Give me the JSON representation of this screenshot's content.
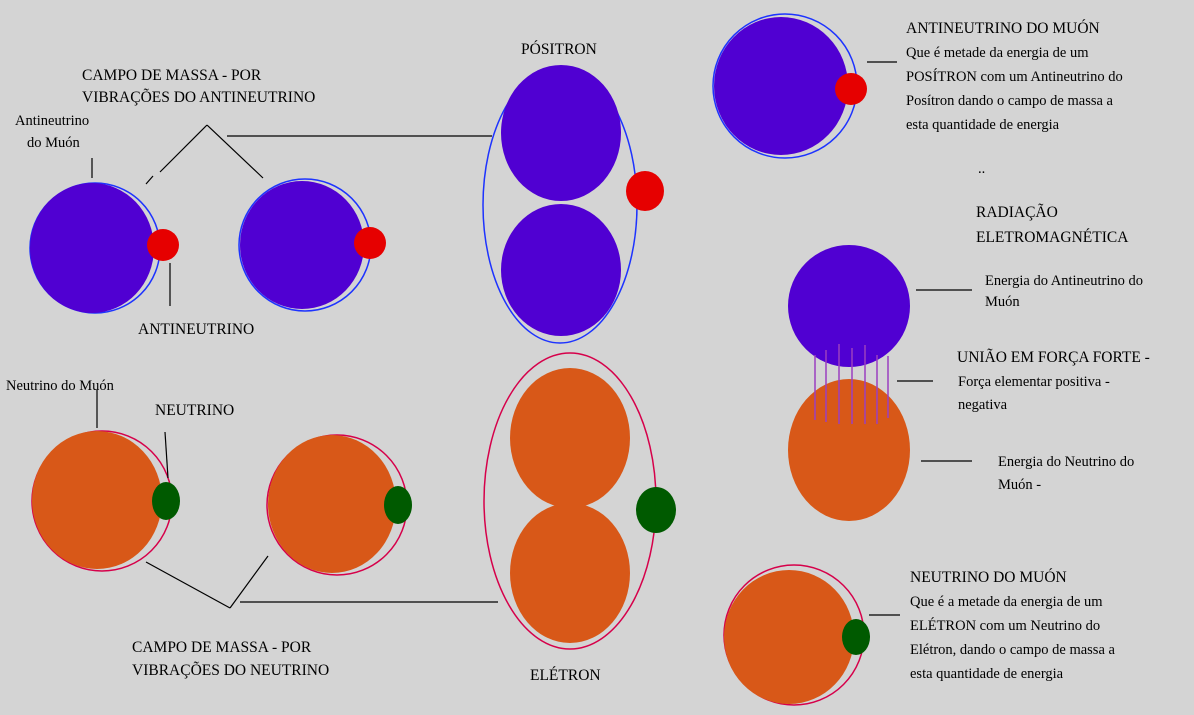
{
  "colors": {
    "background": "#d4d4d4",
    "positive_energy": "#5000d2",
    "negative_energy": "#d85818",
    "antineutrino": "#e60000",
    "neutrino": "#005a00",
    "positive_halo": "#1d33ff",
    "negative_halo": "#d6004a",
    "strong_force": "#9b3fc0",
    "line": "#000000"
  },
  "labels": {
    "mass_field_antineutrino": [
      "CAMPO DE MASSA - POR",
      "VIBRAÇÕES DO ANTINEUTRINO"
    ],
    "muon_antineutrino_label": [
      "Antineutrino",
      "do Muón"
    ],
    "antineutrino": "ANTINEUTRINO",
    "positron": "PÓSITRON",
    "muon_neutrino_label": "Neutrino do Muón",
    "neutrino": "NEUTRINO",
    "mass_field_neutrino": [
      "CAMPO DE MASSA - POR",
      "VIBRAÇÕES DO  NEUTRINO"
    ],
    "electron": "ELÉTRON"
  },
  "right_panel": {
    "muon_antineutrino": {
      "title": "ANTINEUTRINO DO MUÓN",
      "lines": [
        "Que é metade da energia de um",
        "POSÍTRON com um Antineutrino do",
        "Posítron dando o campo de massa a",
        "esta quantidade de energia"
      ]
    },
    "separator": "..",
    "radiation": [
      "RADIAÇÃO",
      "ELETROMAGNÉTICA"
    ],
    "antineutrino_energy": [
      "Energia do Antineutrino do",
      "Muón"
    ],
    "strong_union": {
      "title": "UNIÃO EM FORÇA FORTE -",
      "lines": [
        "Força elementar positiva -",
        "negativa"
      ]
    },
    "neutrino_energy": [
      "Energia do Neutrino do",
      "Muón   -"
    ],
    "muon_neutrino": {
      "title": "NEUTRINO DO MUÓN",
      "lines": [
        "Que é a metade da energia de um",
        "ELÉTRON com um Neutrino do",
        "Elétron, dando o campo de massa a",
        "esta quantidade de energia"
      ]
    }
  }
}
